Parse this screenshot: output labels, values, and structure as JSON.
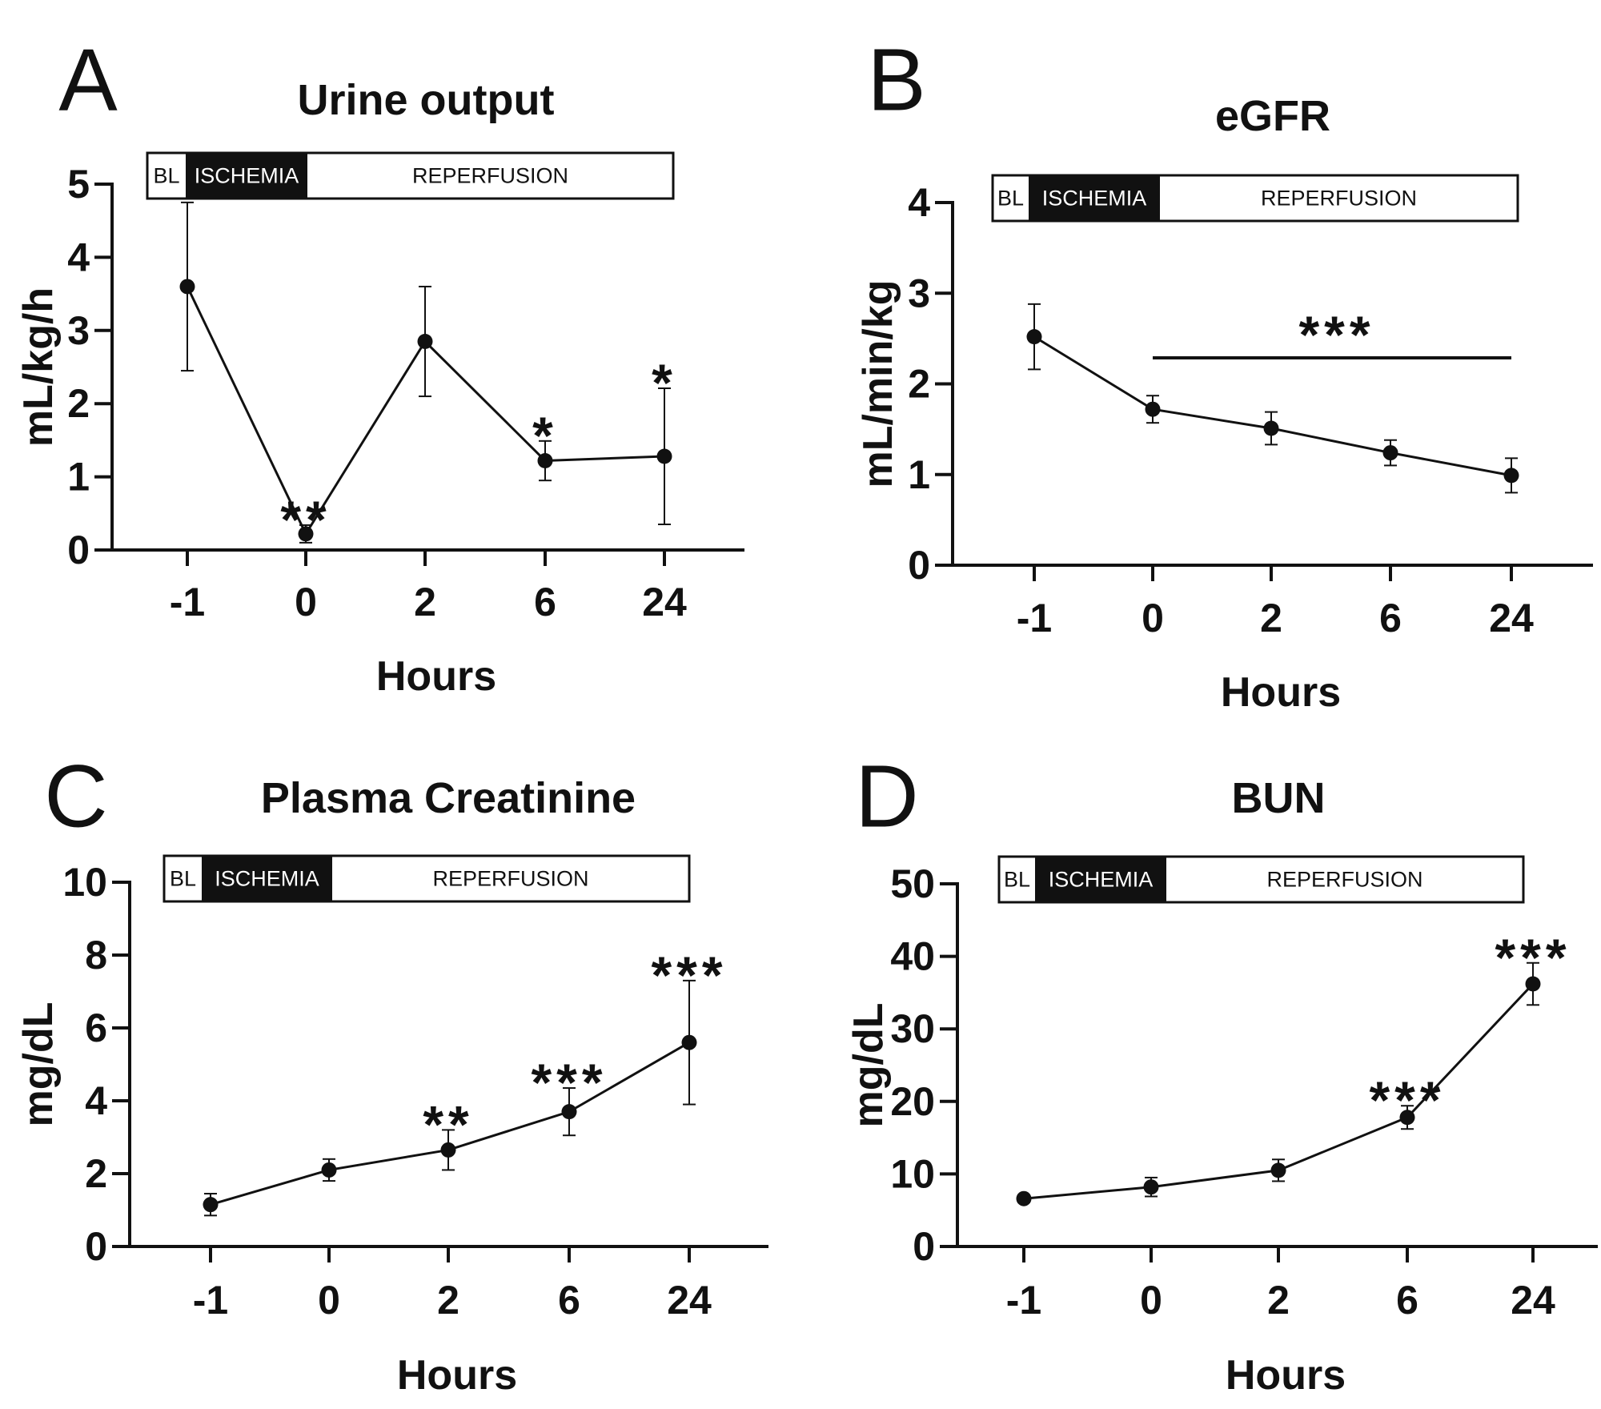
{
  "chart_data": [
    {
      "panel": "A",
      "type": "line",
      "title": "Urine output",
      "xlabel": "Hours",
      "ylabel": "mL/kg/h",
      "categories": [
        "-1",
        "0",
        "2",
        "6",
        "24"
      ],
      "values": [
        3.6,
        0.22,
        2.85,
        1.22,
        1.28
      ],
      "errors": [
        1.15,
        0.12,
        0.75,
        0.27,
        0.93
      ],
      "ylim": [
        0,
        5
      ],
      "yticks": [
        "0",
        "1",
        "2",
        "3",
        "4",
        "5"
      ],
      "significance": [
        "",
        "**",
        "",
        "*",
        "*"
      ],
      "phase_bar": [
        "BL",
        "ISCHEMIA",
        "REPERFUSION"
      ]
    },
    {
      "panel": "B",
      "type": "line",
      "title": "eGFR",
      "xlabel": "Hours",
      "ylabel": "mL/min/kg",
      "categories": [
        "-1",
        "0",
        "2",
        "6",
        "24"
      ],
      "values": [
        2.52,
        1.72,
        1.51,
        1.24,
        0.99
      ],
      "errors": [
        0.36,
        0.15,
        0.18,
        0.14,
        0.19
      ],
      "ylim": [
        0,
        4
      ],
      "yticks": [
        "0",
        "1",
        "2",
        "3",
        "4"
      ],
      "significance_bar": {
        "label": "***",
        "from": "0",
        "to": "24"
      },
      "phase_bar": [
        "BL",
        "ISCHEMIA",
        "REPERFUSION"
      ]
    },
    {
      "panel": "C",
      "type": "line",
      "title": "Plasma Creatinine",
      "xlabel": "Hours",
      "ylabel": "mg/dL",
      "categories": [
        "-1",
        "0",
        "2",
        "6",
        "24"
      ],
      "values": [
        1.15,
        2.1,
        2.65,
        3.7,
        5.6
      ],
      "errors": [
        0.3,
        0.3,
        0.55,
        0.65,
        1.7
      ],
      "ylim": [
        0,
        10
      ],
      "yticks": [
        "0",
        "2",
        "4",
        "6",
        "8",
        "10"
      ],
      "significance": [
        "",
        "",
        "**",
        "***",
        "***"
      ],
      "phase_bar": [
        "BL",
        "ISCHEMIA",
        "REPERFUSION"
      ]
    },
    {
      "panel": "D",
      "type": "line",
      "title": "BUN",
      "xlabel": "Hours",
      "ylabel": "mg/dL",
      "categories": [
        "-1",
        "0",
        "2",
        "6",
        "24"
      ],
      "values": [
        6.6,
        8.2,
        10.5,
        17.8,
        36.2
      ],
      "errors": [
        0.5,
        1.3,
        1.5,
        1.6,
        2.9
      ],
      "ylim": [
        0,
        50
      ],
      "yticks": [
        "0",
        "10",
        "20",
        "30",
        "40",
        "50"
      ],
      "significance": [
        "",
        "",
        "",
        "***",
        "***"
      ],
      "phase_bar": [
        "BL",
        "ISCHEMIA",
        "REPERFUSION"
      ]
    }
  ]
}
